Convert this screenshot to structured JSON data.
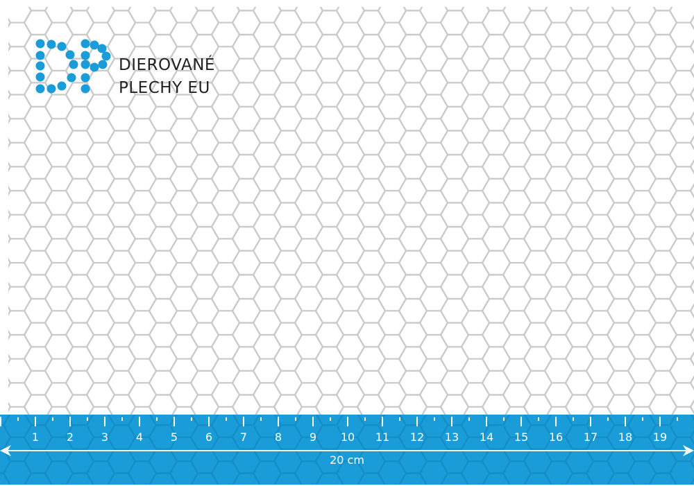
{
  "logo": {
    "mark": "DP",
    "line1": "DIEROVANÉ",
    "line2": "PLECHY EU",
    "color": "#1a9cd8"
  },
  "ruler": {
    "labels": [
      "1",
      "2",
      "3",
      "4",
      "5",
      "6",
      "7",
      "8",
      "9",
      "10",
      "11",
      "12",
      "13",
      "14",
      "15",
      "16",
      "17",
      "18",
      "19"
    ],
    "total_label": "20 cm",
    "color": "#1a9cd8"
  },
  "pattern": {
    "type": "hexagonal perforation",
    "line_color": "#c8c8c8"
  }
}
